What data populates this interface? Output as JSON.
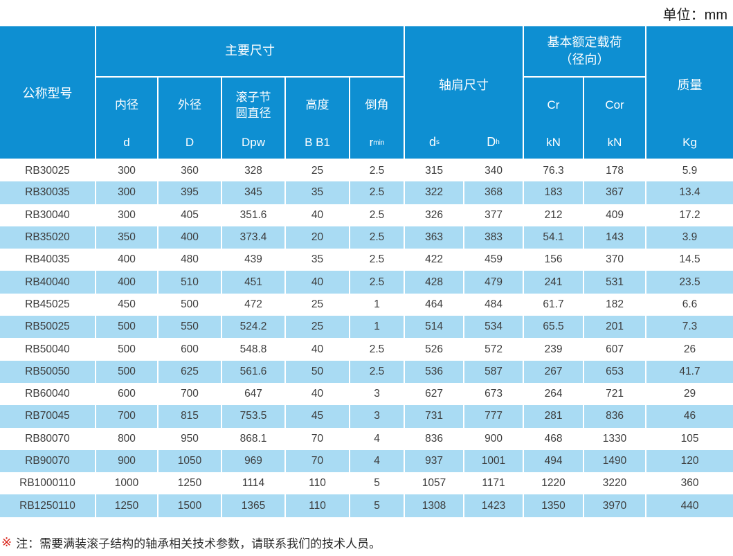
{
  "unit_label": "单位：mm",
  "colors": {
    "header_blue": "#0e8fd2",
    "stripe_blue": "#a9dbf3",
    "note_marker_red": "#d9261c"
  },
  "table": {
    "header": {
      "model": "公称型号",
      "main_dims": "主要尺寸",
      "shoulder": "轴肩尺寸",
      "load_line1": "基本额定载荷",
      "load_line2": "（径向）",
      "mass": "质量",
      "mass_sym": "Kg",
      "sub": {
        "inner_label": "内径",
        "inner_sym": "d",
        "outer_label": "外径",
        "outer_sym": "D",
        "pitch_label": "滚子节\n圆直径",
        "pitch_sym": "Dpw",
        "height_label": "高度",
        "height_sym": "B B1",
        "chamfer_label": "倒角",
        "chamfer_sym_base": "r",
        "chamfer_sym_sub": "min",
        "ds_base": "d",
        "ds_sub": "s",
        "dh_base": "D",
        "dh_sub": "h",
        "cr_label": "Cr",
        "cr_sym": "kN",
        "cor_label": "Cor",
        "cor_sym": "kN"
      }
    },
    "rows": [
      [
        "RB30025",
        "300",
        "360",
        "328",
        "25",
        "2.5",
        "315",
        "340",
        "76.3",
        "178",
        "5.9"
      ],
      [
        "RB30035",
        "300",
        "395",
        "345",
        "35",
        "2.5",
        "322",
        "368",
        "183",
        "367",
        "13.4"
      ],
      [
        "RB30040",
        "300",
        "405",
        "351.6",
        "40",
        "2.5",
        "326",
        "377",
        "212",
        "409",
        "17.2"
      ],
      [
        "RB35020",
        "350",
        "400",
        "373.4",
        "20",
        "2.5",
        "363",
        "383",
        "54.1",
        "143",
        "3.9"
      ],
      [
        "RB40035",
        "400",
        "480",
        "439",
        "35",
        "2.5",
        "422",
        "459",
        "156",
        "370",
        "14.5"
      ],
      [
        "RB40040",
        "400",
        "510",
        "451",
        "40",
        "2.5",
        "428",
        "479",
        "241",
        "531",
        "23.5"
      ],
      [
        "RB45025",
        "450",
        "500",
        "472",
        "25",
        "1",
        "464",
        "484",
        "61.7",
        "182",
        "6.6"
      ],
      [
        "RB50025",
        "500",
        "550",
        "524.2",
        "25",
        "1",
        "514",
        "534",
        "65.5",
        "201",
        "7.3"
      ],
      [
        "RB50040",
        "500",
        "600",
        "548.8",
        "40",
        "2.5",
        "526",
        "572",
        "239",
        "607",
        "26"
      ],
      [
        "RB50050",
        "500",
        "625",
        "561.6",
        "50",
        "2.5",
        "536",
        "587",
        "267",
        "653",
        "41.7"
      ],
      [
        "RB60040",
        "600",
        "700",
        "647",
        "40",
        "3",
        "627",
        "673",
        "264",
        "721",
        "29"
      ],
      [
        "RB70045",
        "700",
        "815",
        "753.5",
        "45",
        "3",
        "731",
        "777",
        "281",
        "836",
        "46"
      ],
      [
        "RB80070",
        "800",
        "950",
        "868.1",
        "70",
        "4",
        "836",
        "900",
        "468",
        "1330",
        "105"
      ],
      [
        "RB90070",
        "900",
        "1050",
        "969",
        "70",
        "4",
        "937",
        "1001",
        "494",
        "1490",
        "120"
      ],
      [
        "RB1000110",
        "1000",
        "1250",
        "1114",
        "110",
        "5",
        "1057",
        "1171",
        "1220",
        "3220",
        "360"
      ],
      [
        "RB1250110",
        "1250",
        "1500",
        "1365",
        "110",
        "5",
        "1308",
        "1423",
        "1350",
        "3970",
        "440"
      ]
    ]
  },
  "note": {
    "marker": "※",
    "text": "注：需要满装滚子结构的轴承相关技术参数，请联系我们的技术人员。"
  }
}
